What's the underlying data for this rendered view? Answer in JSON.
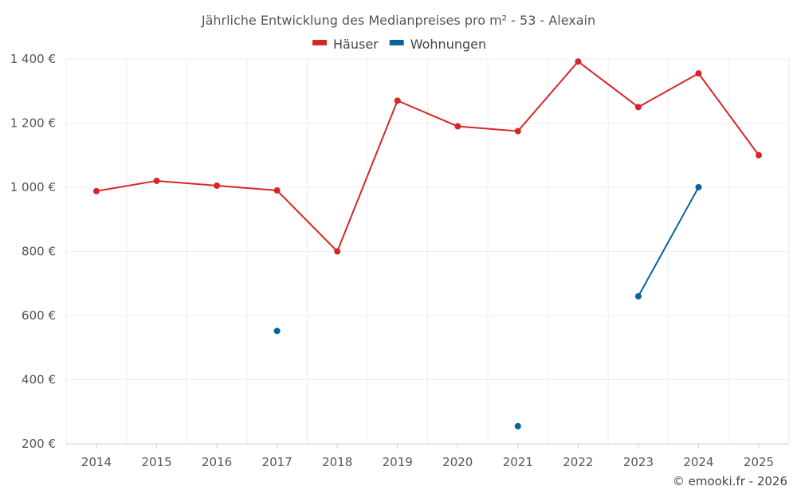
{
  "chart_data": {
    "type": "line",
    "title": "Jährliche Entwicklung des Medianpreises pro m² - 53 - Alexain",
    "x": [
      2014,
      2015,
      2016,
      2017,
      2018,
      2019,
      2020,
      2021,
      2022,
      2023,
      2024,
      2025
    ],
    "x_tick_labels": [
      "2014",
      "2015",
      "2016",
      "2017",
      "2018",
      "2019",
      "2020",
      "2021",
      "2022",
      "2023",
      "2024",
      "2025"
    ],
    "ylim": [
      200,
      1400
    ],
    "y_ticks": [
      200,
      400,
      600,
      800,
      1000,
      1200,
      1400
    ],
    "y_tick_labels": [
      "200 €",
      "400 €",
      "600 €",
      "800 €",
      "1 000 €",
      "1 200 €",
      "1 400 €"
    ],
    "xlabel": "",
    "ylabel": "",
    "grid": true,
    "legend_position": "top-center",
    "series": [
      {
        "name": "Häuser",
        "color": "#d62728",
        "values": [
          988,
          1020,
          1005,
          990,
          800,
          1270,
          1190,
          1175,
          1392,
          1250,
          1355,
          1100
        ]
      },
      {
        "name": "Wohnungen",
        "color": "#08639c",
        "values": [
          null,
          null,
          null,
          552,
          null,
          null,
          null,
          255,
          null,
          660,
          1000,
          null
        ]
      }
    ]
  },
  "copyright": "© emooki.fr - 2026"
}
